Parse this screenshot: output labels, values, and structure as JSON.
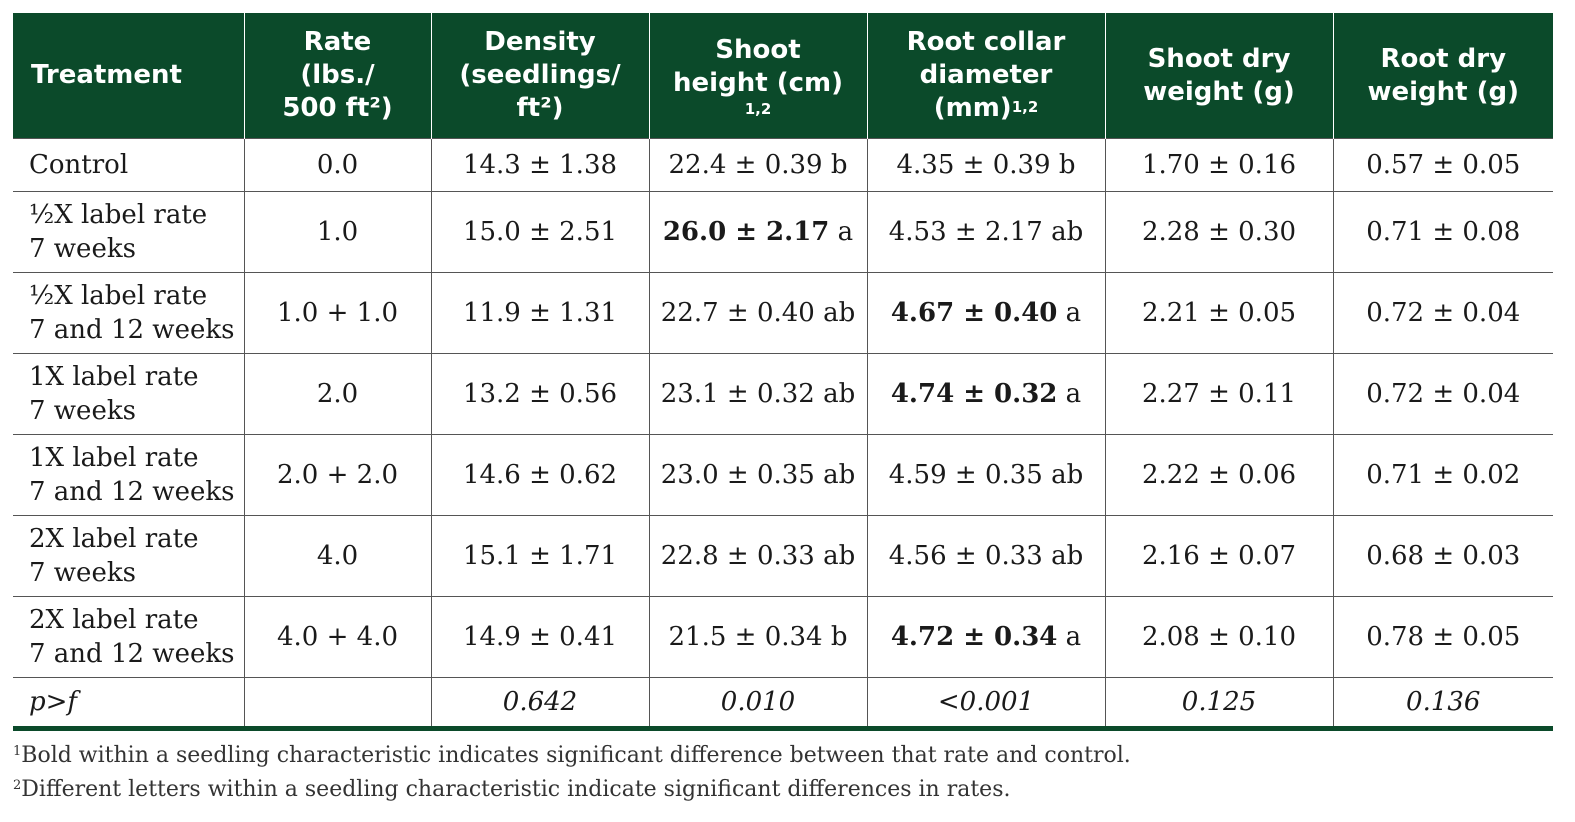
{
  "header": {
    "treatment": "Treatment",
    "rate_l1": "Rate",
    "rate_l2": "(lbs./",
    "rate_l3": "500 ft²)",
    "density_l1": "Density",
    "density_l2": "(seedlings/",
    "density_l3": "ft²)",
    "shoot_l1": "Shoot",
    "shoot_l2": "height (cm)",
    "shoot_sup": "1,2",
    "collar_l1": "Root collar",
    "collar_l2": "diameter",
    "collar_l3": "(mm)",
    "collar_sup": "1,2",
    "sdw_l1": "Shoot dry",
    "sdw_l2": "weight (g)",
    "rdw_l1": "Root dry",
    "rdw_l2": "weight (g)"
  },
  "rows": [
    {
      "t1": "Control",
      "t2": "",
      "rate": "0.0",
      "density": "14.3 ± 1.38",
      "shoot": "22.4 ± 0.39",
      "shoot_letter": " b",
      "shoot_bold": false,
      "collar": "4.35 ± 0.39",
      "collar_letter": " b",
      "collar_bold": false,
      "sdw": "1.70 ± 0.16",
      "rdw": "0.57 ± 0.05"
    },
    {
      "t1": "½X label rate",
      "t2": "7 weeks",
      "rate": "1.0",
      "density": "15.0 ± 2.51",
      "shoot": "26.0 ± 2.17",
      "shoot_letter": " a",
      "shoot_bold": true,
      "collar": "4.53 ± 2.17",
      "collar_letter": " ab",
      "collar_bold": false,
      "sdw": "2.28 ± 0.30",
      "rdw": "0.71 ± 0.08"
    },
    {
      "t1": "½X label rate",
      "t2": "7 and 12 weeks",
      "rate": "1.0 + 1.0",
      "density": "11.9 ± 1.31",
      "shoot": "22.7 ± 0.40",
      "shoot_letter": " ab",
      "shoot_bold": false,
      "collar": "4.67 ± 0.40",
      "collar_letter": " a",
      "collar_bold": true,
      "sdw": "2.21 ± 0.05",
      "rdw": "0.72 ± 0.04"
    },
    {
      "t1": "1X label rate",
      "t2": "7 weeks",
      "rate": "2.0",
      "density": "13.2 ± 0.56",
      "shoot": "23.1 ± 0.32",
      "shoot_letter": " ab",
      "shoot_bold": false,
      "collar": "4.74 ± 0.32",
      "collar_letter": " a",
      "collar_bold": true,
      "sdw": "2.27 ± 0.11",
      "rdw": "0.72 ± 0.04"
    },
    {
      "t1": "1X label rate",
      "t2": "7 and 12 weeks",
      "rate": "2.0 + 2.0",
      "density": "14.6 ± 0.62",
      "shoot": "23.0 ± 0.35",
      "shoot_letter": " ab",
      "shoot_bold": false,
      "collar": "4.59 ± 0.35",
      "collar_letter": " ab",
      "collar_bold": false,
      "sdw": "2.22 ± 0.06",
      "rdw": "0.71 ± 0.02"
    },
    {
      "t1": "2X label rate",
      "t2": "7 weeks",
      "rate": "4.0",
      "density": "15.1 ± 1.71",
      "shoot": "22.8 ± 0.33",
      "shoot_letter": " ab",
      "shoot_bold": false,
      "collar": "4.56 ± 0.33",
      "collar_letter": " ab",
      "collar_bold": false,
      "sdw": "2.16 ± 0.07",
      "rdw": "0.68 ± 0.03"
    },
    {
      "t1": "2X label rate",
      "t2": "7 and 12 weeks",
      "rate": "4.0 + 4.0",
      "density": "14.9 ± 0.41",
      "shoot": "21.5 ± 0.34",
      "shoot_letter": " b",
      "shoot_bold": false,
      "collar": "4.72 ± 0.34",
      "collar_letter": " a",
      "collar_bold": true,
      "sdw": "2.08 ± 0.10",
      "rdw": "0.78 ± 0.05"
    }
  ],
  "pf": {
    "label": "p>f",
    "rate": "",
    "density": "0.642",
    "shoot": "0.010",
    "collar": "<0.001",
    "sdw": "0.125",
    "rdw": "0.136"
  },
  "notes": {
    "n1_mark": "1",
    "n1": "Bold within a seedling characteristic indicates significant difference between that rate and control.",
    "n2_mark": "2",
    "n2": "Different letters within a seedling characteristic indicate significant differences in rates."
  },
  "colors": {
    "header_bg": "#0b4a2a",
    "header_text": "#ffffff"
  }
}
